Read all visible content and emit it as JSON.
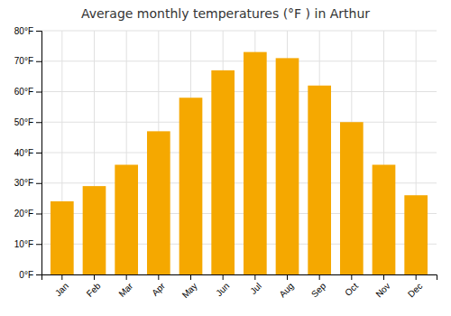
{
  "chart_data": {
    "type": "bar",
    "title": "Average monthly temperatures (°F ) in Arthur",
    "categories": [
      "Jan",
      "Feb",
      "Mar",
      "Apr",
      "May",
      "Jun",
      "Jul",
      "Aug",
      "Sep",
      "Oct",
      "Nov",
      "Dec"
    ],
    "values": [
      24,
      29,
      36,
      47,
      58,
      67,
      73,
      71,
      62,
      50,
      36,
      26
    ],
    "color": "#F5A800",
    "ylim": [
      0,
      80
    ],
    "yticks": [
      {
        "value": 0,
        "label": "0°F"
      },
      {
        "value": 10,
        "label": "10°F"
      },
      {
        "value": 20,
        "label": "20°F"
      },
      {
        "value": 30,
        "label": "30°F"
      },
      {
        "value": 40,
        "label": "40°F"
      },
      {
        "value": 50,
        "label": "50°F"
      },
      {
        "value": 60,
        "label": "60°F"
      },
      {
        "value": 70,
        "label": "70°F"
      },
      {
        "value": 80,
        "label": "80°F"
      }
    ],
    "grid": true
  }
}
